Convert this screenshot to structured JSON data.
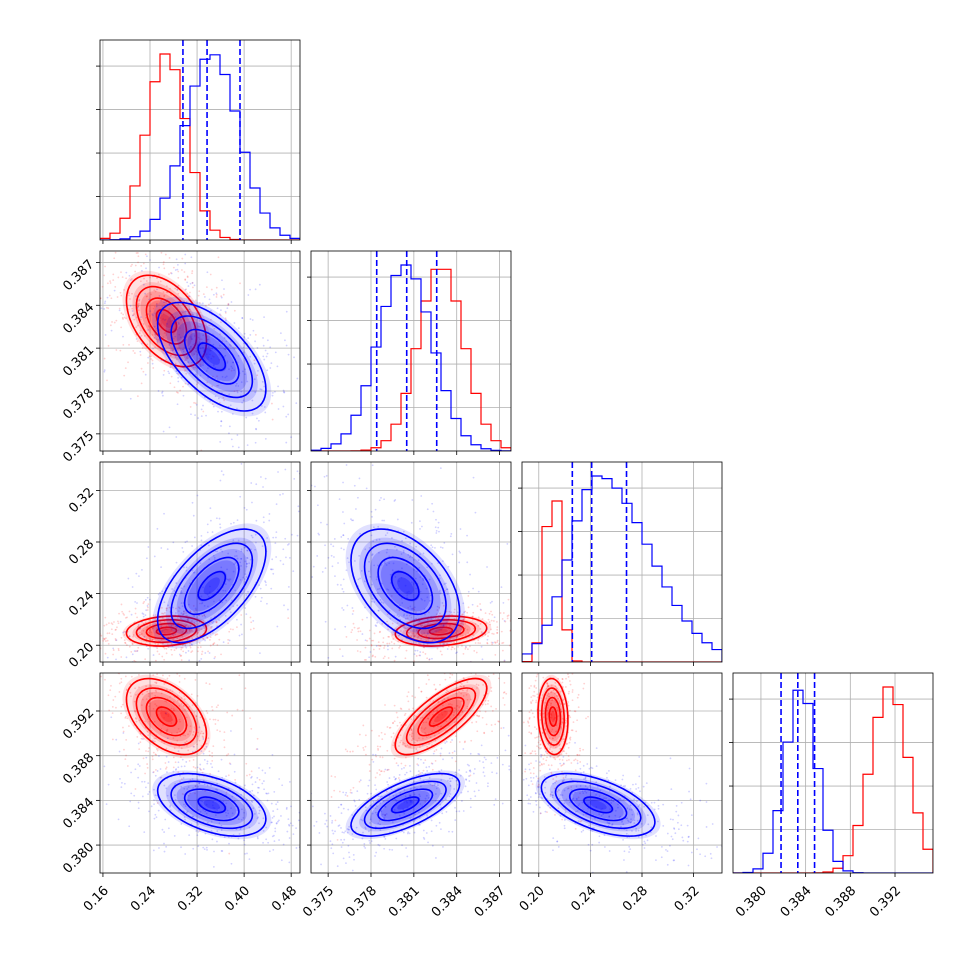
{
  "chart_data": {
    "type": "corner",
    "title": "",
    "parameters": [
      "",
      "",
      "",
      ""
    ],
    "colors": {
      "red": "#ff0000",
      "blue": "#0000ff",
      "grid": "#b0b0b0"
    },
    "grid": true,
    "axes": [
      {
        "range": [
          0.155,
          0.495
        ],
        "ticks": [
          0.16,
          0.24,
          0.32,
          0.4,
          0.48
        ],
        "tick_labels": [
          "0.16",
          "0.24",
          "0.32",
          "0.40",
          "0.48"
        ]
      },
      {
        "range": [
          0.3738,
          0.3878
        ],
        "ticks": [
          0.375,
          0.378,
          0.381,
          0.384,
          0.387
        ],
        "tick_labels": [
          "0.375",
          "0.378",
          "0.381",
          "0.384",
          "0.387"
        ]
      },
      {
        "range": [
          0.187,
          0.342
        ],
        "ticks": [
          0.2,
          0.24,
          0.28,
          0.32
        ],
        "tick_labels": [
          "0.20",
          "0.24",
          "0.28",
          "0.32"
        ]
      },
      {
        "range": [
          0.3775,
          0.3954
        ],
        "ticks": [
          0.38,
          0.384,
          0.388,
          0.392
        ],
        "tick_labels": [
          "0.380",
          "0.384",
          "0.388",
          "0.392"
        ]
      }
    ],
    "series": [
      {
        "color": "#ff0000",
        "means": [
          0.268,
          0.3829,
          0.211,
          0.3915
        ],
        "sds": [
          0.034,
          0.0016,
          0.0058,
          0.0017
        ],
        "correlations": {
          "0-1": -0.45,
          "0-2": 0.15,
          "0-3": -0.45,
          "1-2": 0.2,
          "1-3": 0.75,
          "2-3": -0.1
        }
      },
      {
        "color": "#0000ff",
        "means": [
          0.345,
          0.3804,
          0.246,
          0.3836
        ],
        "sds": [
          0.046,
          0.0019,
          0.022,
          0.0014
        ],
        "correlations": {
          "0-1": -0.6,
          "0-2": 0.6,
          "0-3": -0.45,
          "1-2": -0.45,
          "1-3": 0.65,
          "2-3": -0.55
        }
      }
    ],
    "quantile_lines": {
      "color": "#0000ff",
      "values": [
        [
          0.296,
          0.337,
          0.393
        ],
        [
          0.3784,
          0.3805,
          0.3826
        ],
        [
          0.226,
          0.241,
          0.268
        ],
        [
          0.3818,
          0.3833,
          0.3848
        ]
      ]
    }
  }
}
